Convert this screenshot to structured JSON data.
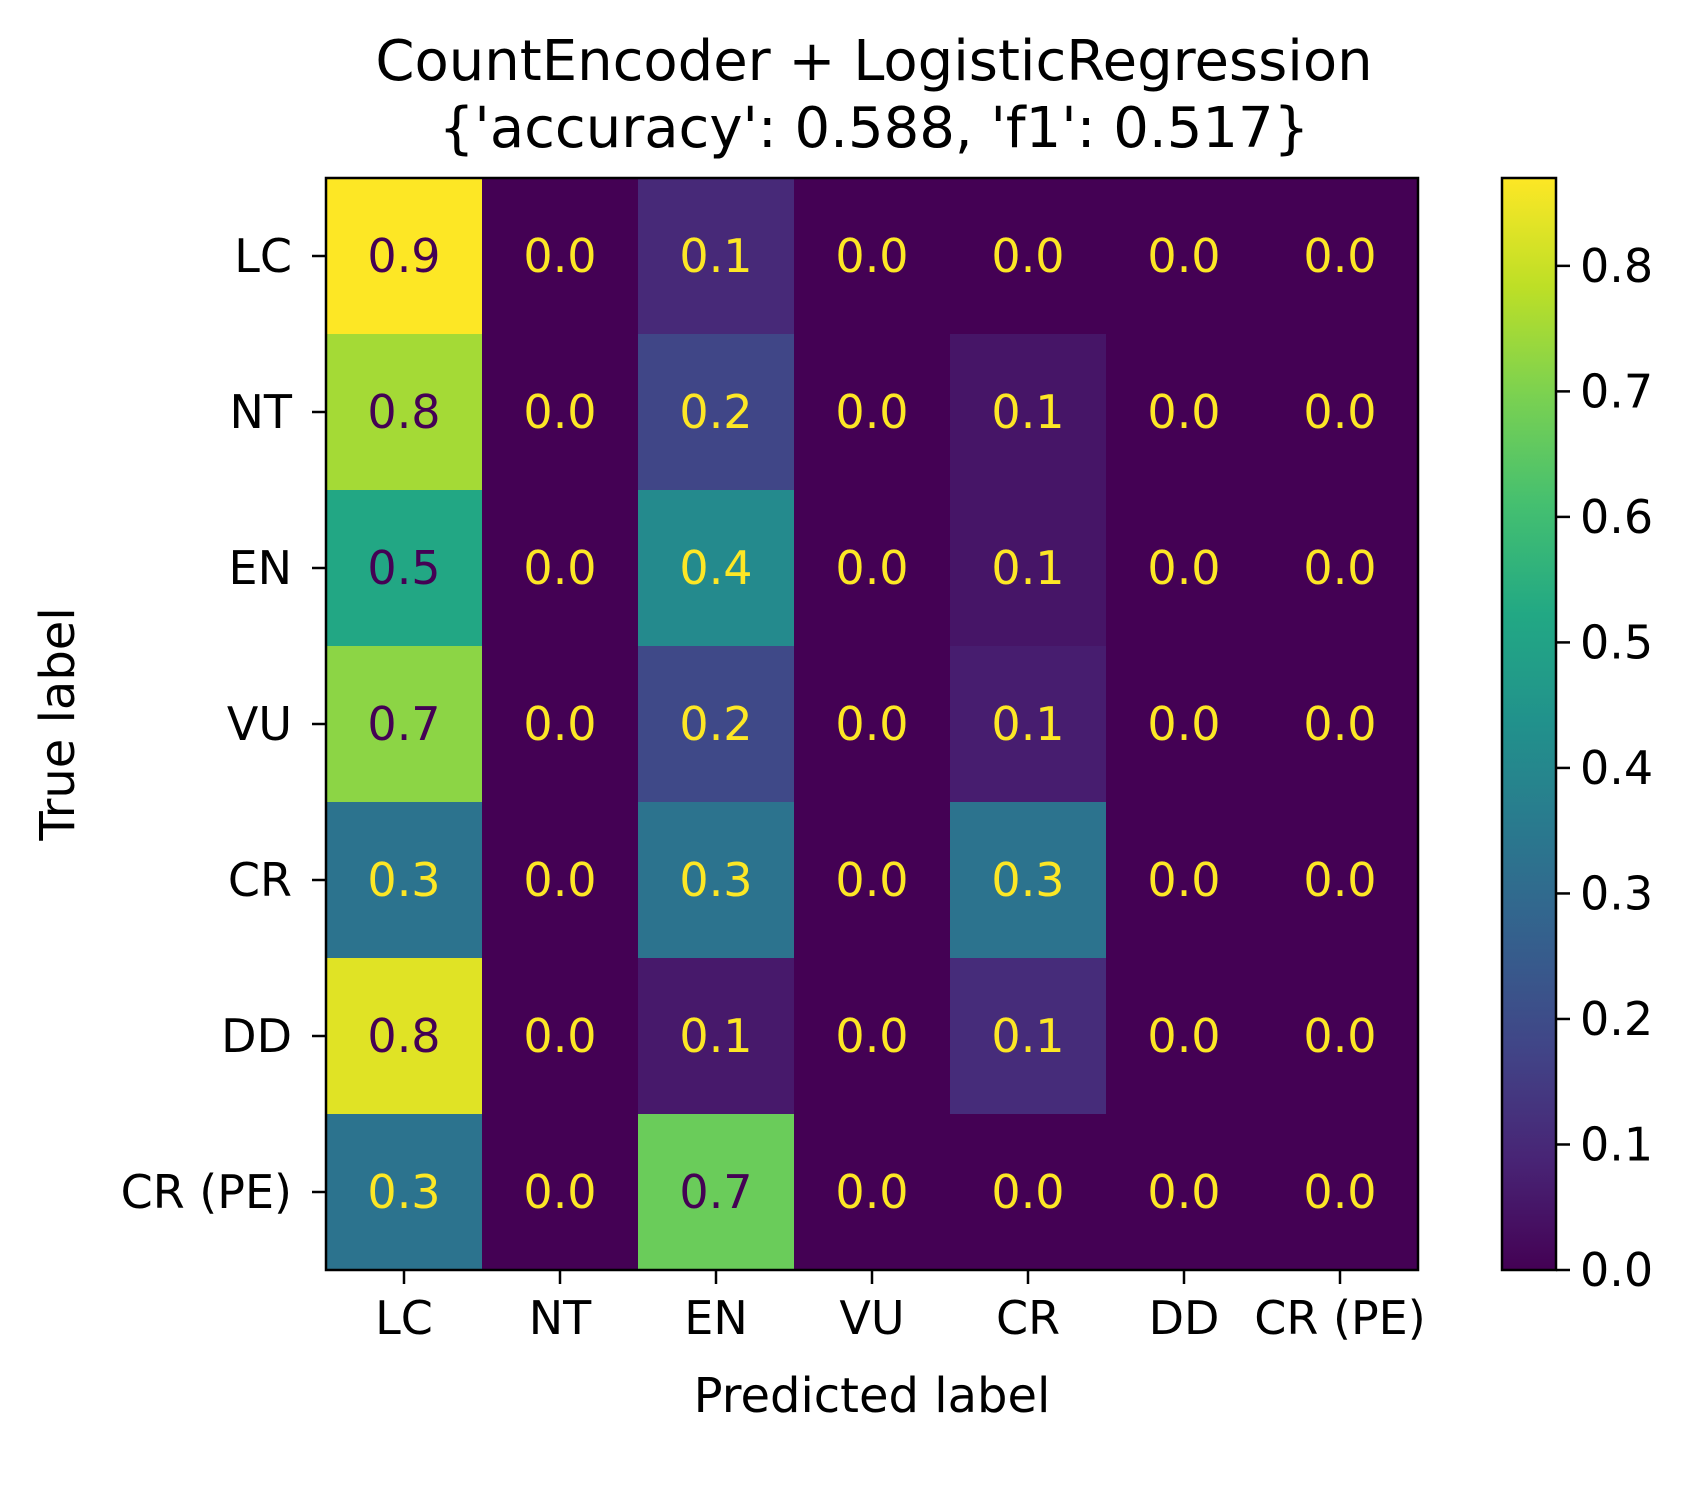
{
  "chart_data": {
    "type": "heatmap",
    "title": "CountEncoder + LogisticRegression",
    "subtitle": "{'accuracy': 0.588, 'f1': 0.517}",
    "xlabel": "Predicted label",
    "ylabel": "True label",
    "x_categories": [
      "LC",
      "NT",
      "EN",
      "VU",
      "CR",
      "DD",
      "CR (PE)"
    ],
    "y_categories": [
      "LC",
      "NT",
      "EN",
      "VU",
      "CR",
      "DD",
      "CR (PE)"
    ],
    "values": [
      [
        0.87,
        0.0,
        0.1,
        0.0,
        0.0,
        0.0,
        0.0
      ],
      [
        0.75,
        0.0,
        0.18,
        0.0,
        0.05,
        0.0,
        0.0
      ],
      [
        0.52,
        0.0,
        0.41,
        0.0,
        0.05,
        0.0,
        0.0
      ],
      [
        0.72,
        0.0,
        0.19,
        0.0,
        0.07,
        0.0,
        0.0
      ],
      [
        0.33,
        0.0,
        0.33,
        0.0,
        0.33,
        0.0,
        0.0
      ],
      [
        0.83,
        0.0,
        0.06,
        0.0,
        0.11,
        0.0,
        0.0
      ],
      [
        0.33,
        0.0,
        0.67,
        0.0,
        0.0,
        0.0,
        0.0
      ]
    ],
    "cell_labels": [
      [
        "0.9",
        "0.0",
        "0.1",
        "0.0",
        "0.0",
        "0.0",
        "0.0"
      ],
      [
        "0.8",
        "0.0",
        "0.2",
        "0.0",
        "0.1",
        "0.0",
        "0.0"
      ],
      [
        "0.5",
        "0.0",
        "0.4",
        "0.0",
        "0.1",
        "0.0",
        "0.0"
      ],
      [
        "0.7",
        "0.0",
        "0.2",
        "0.0",
        "0.1",
        "0.0",
        "0.0"
      ],
      [
        "0.3",
        "0.0",
        "0.3",
        "0.0",
        "0.3",
        "0.0",
        "0.0"
      ],
      [
        "0.8",
        "0.0",
        "0.1",
        "0.0",
        "0.1",
        "0.0",
        "0.0"
      ],
      [
        "0.3",
        "0.0",
        "0.7",
        "0.0",
        "0.0",
        "0.0",
        "0.0"
      ]
    ],
    "colormap": "viridis",
    "vmin": 0.0,
    "vmax": 0.87,
    "colorbar_ticks": [
      "0.0",
      "0.1",
      "0.2",
      "0.3",
      "0.4",
      "0.5",
      "0.6",
      "0.7",
      "0.8"
    ],
    "text_color_light": "#fde725",
    "text_color_dark": "#440154"
  }
}
